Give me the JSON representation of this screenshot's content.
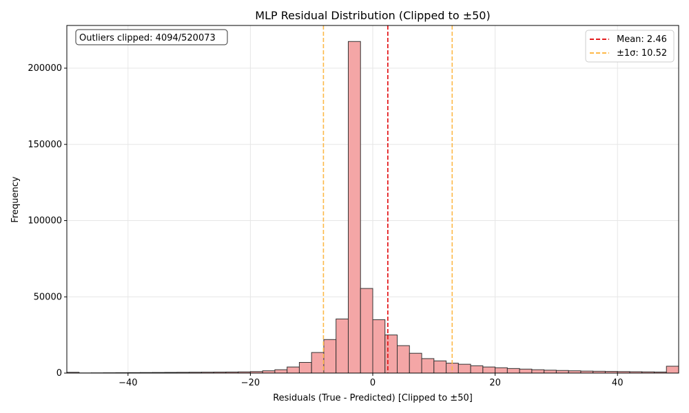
{
  "chart_data": {
    "type": "bar",
    "title": "MLP Residual Distribution (Clipped to ±50)",
    "xlabel": "Residuals (True - Predicted) [Clipped to ±50]",
    "ylabel": "Frequency",
    "xlim": [
      -50,
      50
    ],
    "ylim": [
      0,
      228000
    ],
    "xticks": [
      -40,
      -20,
      0,
      20,
      40
    ],
    "yticks": [
      0,
      50000,
      100000,
      150000,
      200000
    ],
    "grid": true,
    "bin_start": -50,
    "bin_width": 2,
    "values": [
      500,
      100,
      150,
      200,
      250,
      300,
      350,
      400,
      450,
      500,
      550,
      600,
      650,
      700,
      800,
      1000,
      1500,
      2200,
      4000,
      7000,
      13500,
      22000,
      35500,
      217500,
      55500,
      35000,
      25000,
      18000,
      13000,
      9500,
      8000,
      6500,
      5800,
      4800,
      4000,
      3500,
      3000,
      2600,
      2200,
      1900,
      1700,
      1500,
      1300,
      1200,
      1100,
      1000,
      900,
      800,
      700,
      4500
    ],
    "bar_color": "#f4a6a6",
    "bar_edge_color": "#333333",
    "mean": 2.46,
    "sigma": 10.52,
    "mean_line": {
      "label": "Mean: 2.46",
      "value": 2.46,
      "color": "#e31a1c"
    },
    "sigma_lines": {
      "label": "±1σ: 10.52",
      "values": [
        -8.06,
        12.98
      ],
      "color": "#fdb847"
    },
    "legend": {
      "placement": "top-right"
    },
    "annotation": {
      "text": "Outliers clipped: 4094/520073",
      "placement": "top-left"
    }
  }
}
